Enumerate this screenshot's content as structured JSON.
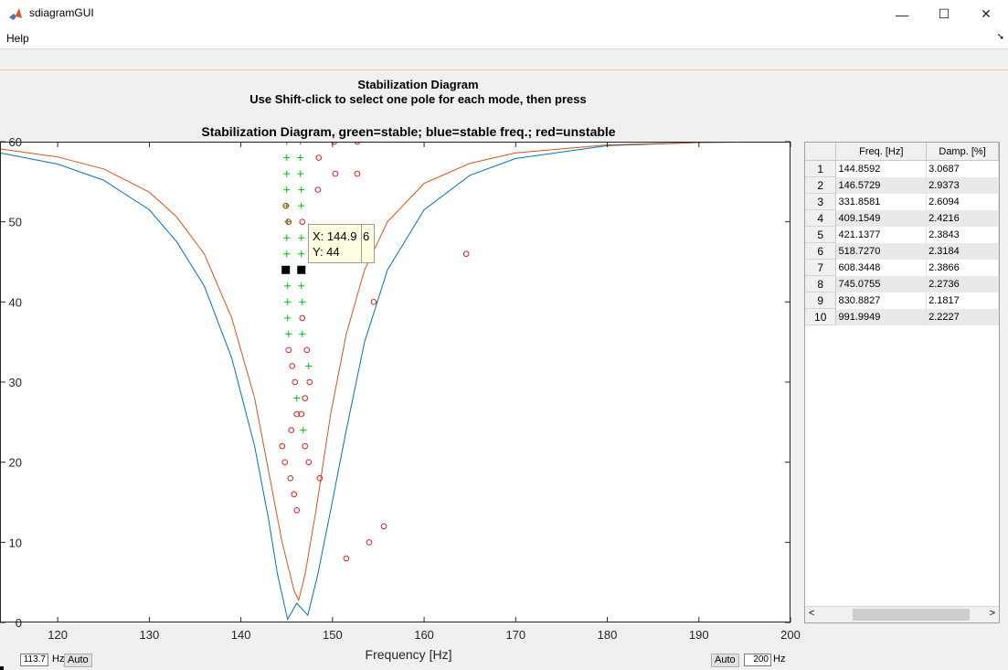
{
  "window": {
    "title": "sdiagramGUI",
    "minimize": "—",
    "maximize": "☐",
    "close": "✕",
    "app_icon": "matlab-icon"
  },
  "menu": {
    "help": "Help",
    "arrow": "➘"
  },
  "header": {
    "line1": "Stabilization Diagram",
    "line2": "Use Shift-click to select one pole for each mode, then press"
  },
  "plot": {
    "title": "Stabilization Diagram, green=stable; blue=stable freq.; red=unstable",
    "xlabel": "Frequency [Hz]",
    "datatip": {
      "x_label": "X: 144.9",
      "x_extra": "6",
      "y_label": "Y: 44"
    }
  },
  "chart_data": {
    "type": "scatter",
    "title": "Stabilization Diagram, green=stable; blue=stable freq.; red=unstable",
    "xlabel": "Frequency [Hz]",
    "ylabel": "",
    "xlim": [
      113.7,
      200
    ],
    "ylim": [
      0,
      60
    ],
    "xticks": [
      120,
      130,
      140,
      150,
      160,
      170,
      180,
      190,
      200
    ],
    "yticks": [
      0,
      10,
      20,
      30,
      40,
      50,
      60
    ],
    "grid": false,
    "series": [
      {
        "color": "#0072bd",
        "points": [
          [
            113.7,
            58.6
          ],
          [
            120,
            57.2
          ],
          [
            125,
            55.2
          ],
          [
            130,
            51.5
          ],
          [
            133,
            47.5
          ],
          [
            136,
            42
          ],
          [
            139,
            33
          ],
          [
            141.5,
            22
          ],
          [
            143,
            13
          ],
          [
            144,
            6
          ],
          [
            145.1,
            0.4
          ],
          [
            146.1,
            2.4
          ],
          [
            147.3,
            0.9
          ],
          [
            148.4,
            6
          ],
          [
            149.8,
            14
          ],
          [
            151.5,
            24
          ],
          [
            153.5,
            35
          ],
          [
            156,
            44
          ],
          [
            160,
            51.5
          ],
          [
            165,
            55.8
          ],
          [
            170,
            57.9
          ],
          [
            180,
            59.5
          ],
          [
            190,
            59.9
          ],
          [
            200,
            60
          ]
        ]
      },
      {
        "color": "#d95319",
        "points": [
          [
            113.7,
            59.1
          ],
          [
            120,
            58.1
          ],
          [
            125,
            56.6
          ],
          [
            130,
            53.7
          ],
          [
            133,
            50.6
          ],
          [
            136,
            46
          ],
          [
            139,
            38
          ],
          [
            141.5,
            28
          ],
          [
            143,
            19
          ],
          [
            144.5,
            10
          ],
          [
            145.8,
            4
          ],
          [
            146.3,
            2.8
          ],
          [
            147,
            6
          ],
          [
            148.2,
            14
          ],
          [
            149.8,
            26
          ],
          [
            151.5,
            36
          ],
          [
            153.5,
            44
          ],
          [
            156,
            50
          ],
          [
            160,
            54.8
          ],
          [
            165,
            57.3
          ],
          [
            170,
            58.6
          ],
          [
            180,
            59.6
          ],
          [
            190,
            59.9
          ],
          [
            200,
            60
          ]
        ]
      },
      {
        "color": "#00c000",
        "marker": "+",
        "points": [
          [
            145.0,
            60
          ],
          [
            146.5,
            60
          ],
          [
            145.0,
            58
          ],
          [
            146.5,
            58
          ],
          [
            145.0,
            56
          ],
          [
            146.5,
            56
          ],
          [
            145.0,
            54
          ],
          [
            146.6,
            54
          ],
          [
            145.0,
            52
          ],
          [
            146.6,
            52
          ],
          [
            145.1,
            50
          ],
          [
            145.0,
            48
          ],
          [
            146.6,
            48
          ],
          [
            145.0,
            46
          ],
          [
            146.6,
            46
          ],
          [
            145.1,
            42
          ],
          [
            146.6,
            42
          ],
          [
            145.1,
            40
          ],
          [
            146.7,
            40
          ],
          [
            145.1,
            38
          ],
          [
            146.7,
            36
          ],
          [
            145.2,
            36
          ],
          [
            147.4,
            32
          ],
          [
            146.1,
            28
          ],
          [
            146.8,
            24
          ]
        ]
      },
      {
        "color": "#e02020",
        "marker": "o",
        "points": [
          [
            150.2,
            60
          ],
          [
            152.7,
            60
          ],
          [
            148.5,
            58
          ],
          [
            150.3,
            56
          ],
          [
            152.7,
            56
          ],
          [
            148.4,
            54
          ],
          [
            144.9,
            52
          ],
          [
            145.2,
            50
          ],
          [
            146.7,
            50
          ],
          [
            146.7,
            38
          ],
          [
            145.2,
            34
          ],
          [
            147.2,
            34
          ],
          [
            145.6,
            32
          ],
          [
            145.9,
            30
          ],
          [
            147.5,
            30
          ],
          [
            147.0,
            28
          ],
          [
            146.1,
            26
          ],
          [
            146.6,
            26
          ],
          [
            145.5,
            24
          ],
          [
            144.5,
            22
          ],
          [
            147.0,
            22
          ],
          [
            144.8,
            20
          ],
          [
            147.4,
            20
          ],
          [
            145.4,
            18
          ],
          [
            148.6,
            18
          ],
          [
            145.8,
            16
          ],
          [
            146.1,
            14
          ],
          [
            155.6,
            12
          ],
          [
            154.0,
            10
          ],
          [
            151.5,
            8
          ],
          [
            164.6,
            46
          ],
          [
            154.5,
            40
          ]
        ]
      },
      {
        "color": "#000000",
        "marker": "square",
        "points": [
          [
            144.9,
            44
          ],
          [
            146.6,
            44
          ]
        ]
      }
    ]
  },
  "table": {
    "columns": [
      "",
      "Freq. [Hz]",
      "Damp. [%]"
    ],
    "rows": [
      [
        "1",
        "144.8592",
        "3.0687"
      ],
      [
        "2",
        "146.5729",
        "2.9373"
      ],
      [
        "3",
        "331.8581",
        "2.6094"
      ],
      [
        "4",
        "409.1549",
        "2.4216"
      ],
      [
        "5",
        "421.1377",
        "2.3843"
      ],
      [
        "6",
        "518.7270",
        "2.3184"
      ],
      [
        "7",
        "608.3448",
        "2.3866"
      ],
      [
        "8",
        "745.0755",
        "2.2736"
      ],
      [
        "9",
        "830.8827",
        "2.1817"
      ],
      [
        "10",
        "991.9949",
        "2.2227"
      ]
    ],
    "scroll_left": "<",
    "scroll_right": ">"
  },
  "controls": {
    "xmin_value": "113.7",
    "xmin_unit": "Hz",
    "auto_left": "Auto",
    "auto_right": "Auto",
    "xmax_value": "200",
    "xmax_unit": "Hz"
  }
}
